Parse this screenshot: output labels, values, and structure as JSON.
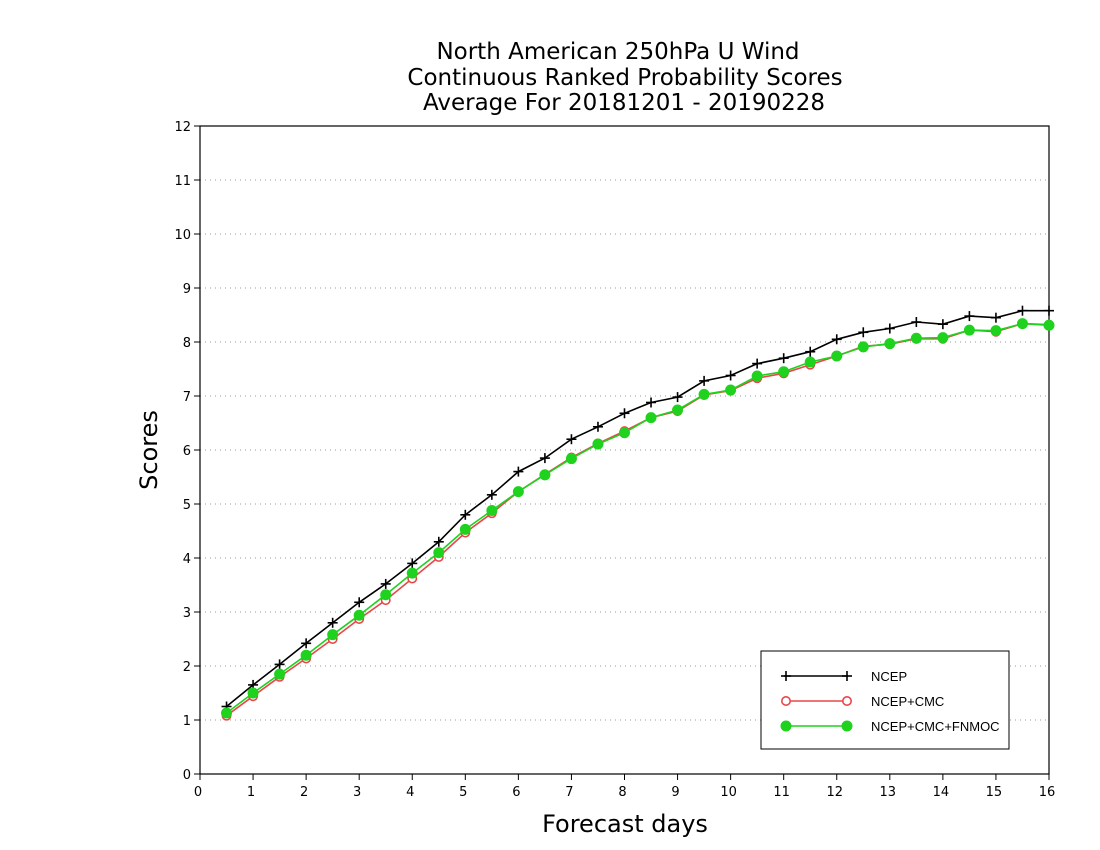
{
  "chart_data": {
    "type": "line",
    "title": [
      "North American 250hPa U Wind",
      "Continuous Ranked Probability Scores",
      "Average For 20181201 - 20190228"
    ],
    "xlabel": "Forecast days",
    "ylabel": "Scores",
    "xlim": [
      0,
      16
    ],
    "ylim": [
      0,
      12
    ],
    "xticks": [
      "0",
      "1",
      "2",
      "3",
      "4",
      "5",
      "6",
      "7",
      "8",
      "9",
      "10",
      "11",
      "12",
      "13",
      "14",
      "15",
      "16"
    ],
    "yticks": [
      "0",
      "1",
      "2",
      "3",
      "4",
      "5",
      "6",
      "7",
      "8",
      "9",
      "10",
      "11",
      "12"
    ],
    "grid": "horizontal-dotted",
    "legend_position": "bottom-right",
    "x": [
      0.5,
      1,
      1.5,
      2,
      2.5,
      3,
      3.5,
      4,
      4.5,
      5,
      5.5,
      6,
      6.5,
      7,
      7.5,
      8,
      8.5,
      9,
      9.5,
      10,
      10.5,
      11,
      11.5,
      12,
      12.5,
      13,
      13.5,
      14,
      14.5,
      15,
      15.5,
      16
    ],
    "series": [
      {
        "name": "NCEP",
        "color": "#000000",
        "marker": "plus",
        "values": [
          1.25,
          1.65,
          2.03,
          2.42,
          2.8,
          3.18,
          3.52,
          3.9,
          4.3,
          4.8,
          5.17,
          5.6,
          5.85,
          6.2,
          6.43,
          6.68,
          6.88,
          6.98,
          7.28,
          7.38,
          7.6,
          7.7,
          7.82,
          8.05,
          8.18,
          8.25,
          8.37,
          8.33,
          8.48,
          8.45,
          8.58,
          8.58
        ]
      },
      {
        "name": "NCEP+CMC",
        "color": "#e8474a",
        "marker": "open-circle",
        "values": [
          1.08,
          1.44,
          1.8,
          2.14,
          2.5,
          2.87,
          3.22,
          3.62,
          4.02,
          4.47,
          4.83,
          5.23,
          5.55,
          5.86,
          6.12,
          6.35,
          6.6,
          6.72,
          7.02,
          7.1,
          7.33,
          7.42,
          7.58,
          7.74,
          7.92,
          7.96,
          8.06,
          8.06,
          8.22,
          8.19,
          8.34,
          8.32
        ]
      },
      {
        "name": "NCEP+CMC+FNMOC",
        "color": "#1ed21e",
        "marker": "filled-circle",
        "values": [
          1.13,
          1.5,
          1.85,
          2.2,
          2.58,
          2.94,
          3.32,
          3.72,
          4.1,
          4.53,
          4.88,
          5.23,
          5.54,
          5.84,
          6.11,
          6.32,
          6.6,
          6.74,
          7.03,
          7.11,
          7.37,
          7.45,
          7.63,
          7.74,
          7.91,
          7.97,
          8.07,
          8.08,
          8.22,
          8.21,
          8.34,
          8.31
        ]
      }
    ]
  }
}
